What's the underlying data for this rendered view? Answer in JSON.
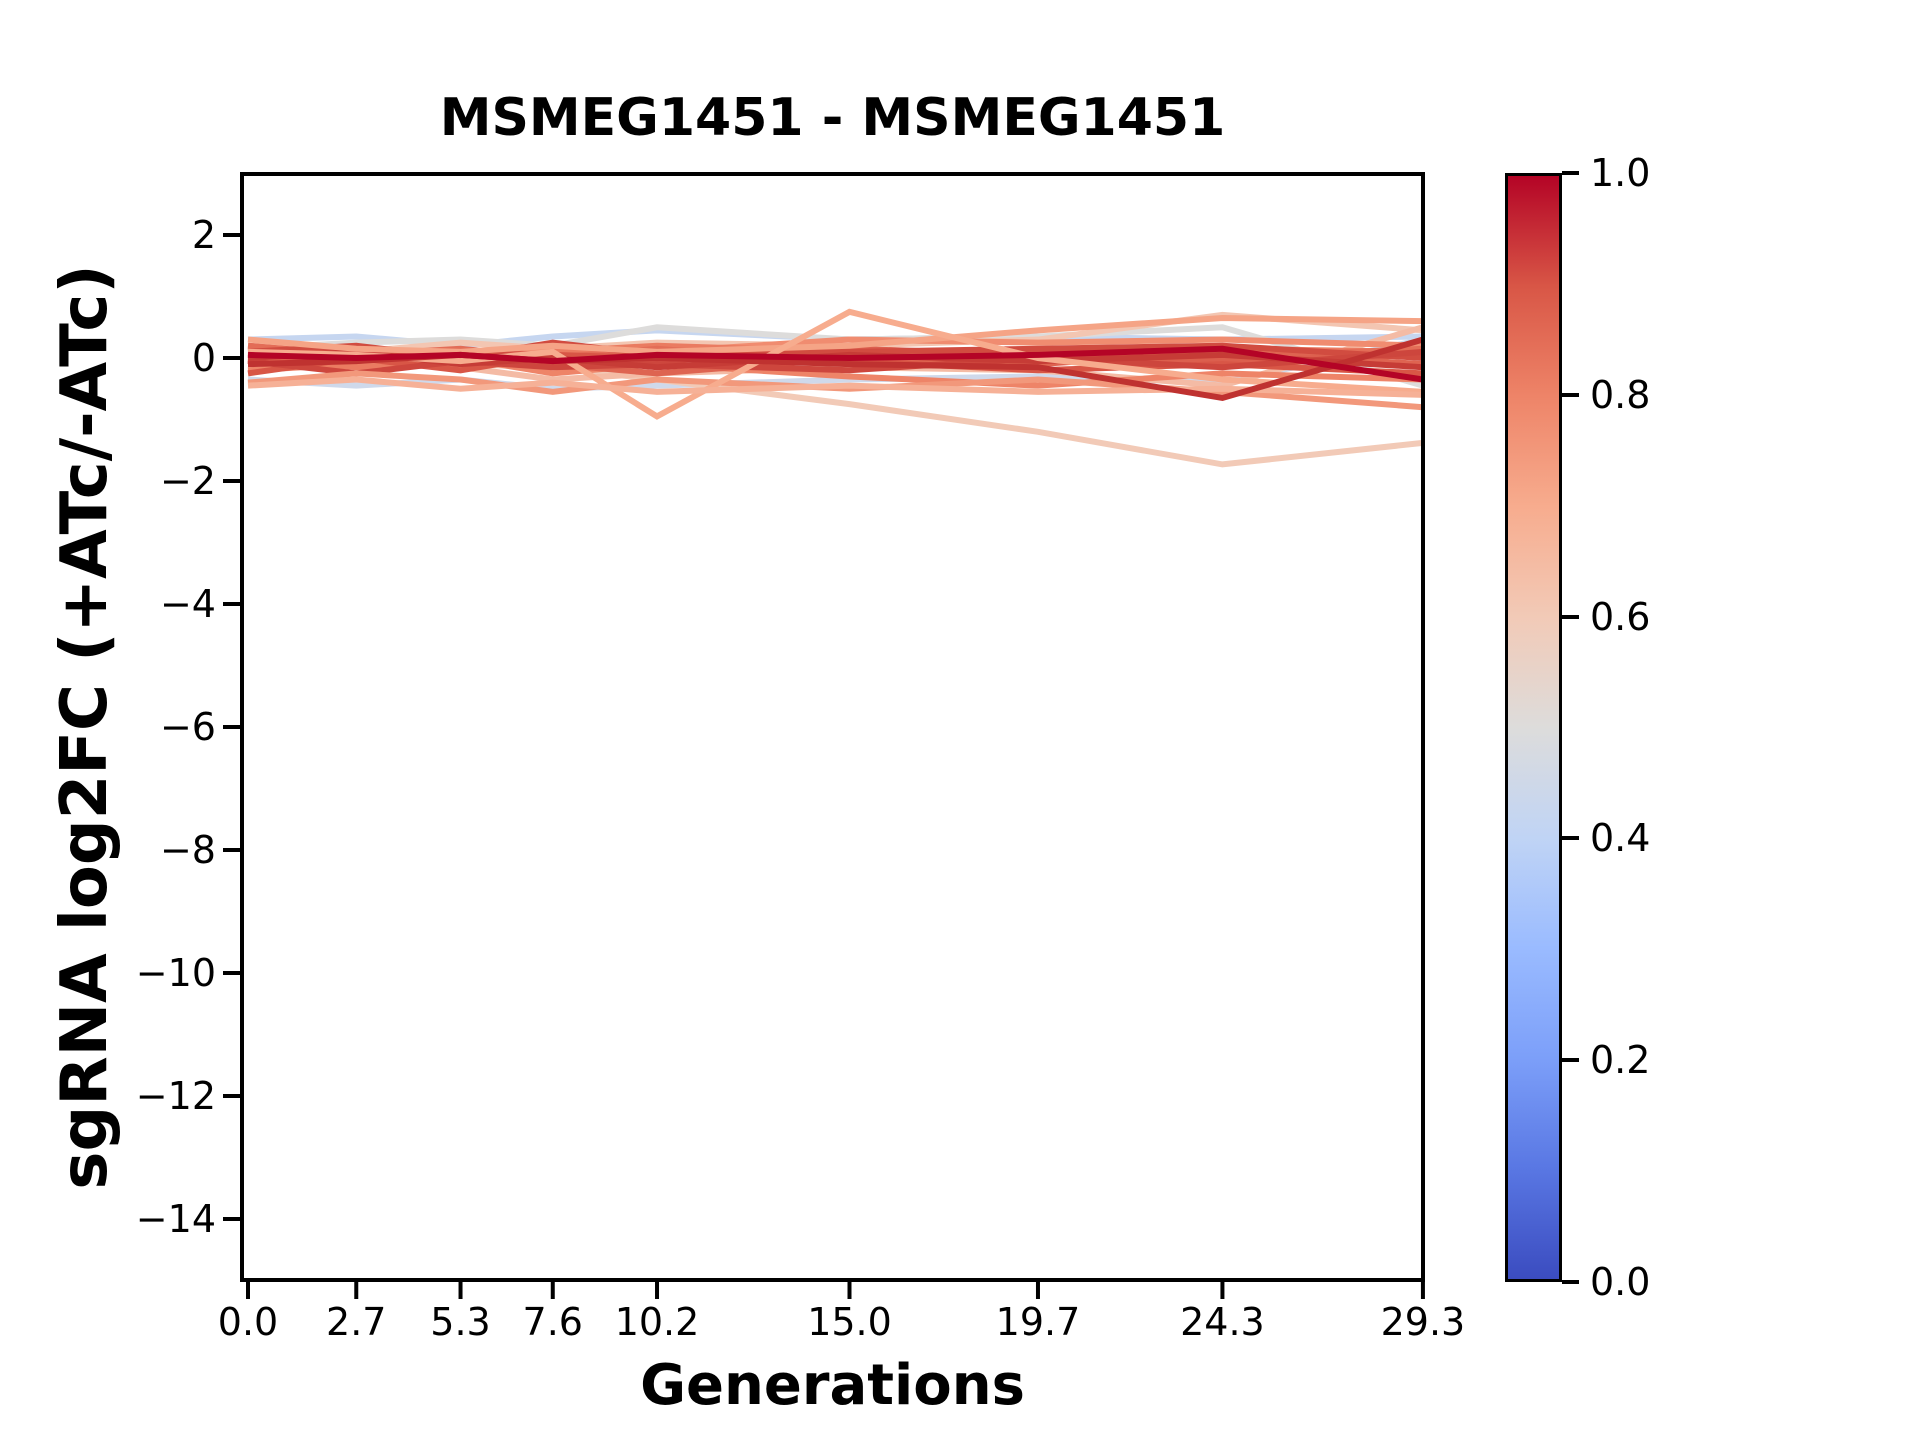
{
  "figure": {
    "background": "#ffffff"
  },
  "chart_data": {
    "type": "line",
    "title": "MSMEG1451 - MSMEG1451",
    "xlabel": "Generations",
    "ylabel": "sgRNA log2FC (+ATc/-ATc)",
    "grid": false,
    "x": [
      0.0,
      2.7,
      5.3,
      7.6,
      10.2,
      15.0,
      19.7,
      24.3,
      29.3
    ],
    "xtick_labels": [
      "0.0",
      "2.7",
      "5.3",
      "7.6",
      "10.2",
      "15.0",
      "19.7",
      "24.3",
      "29.3"
    ],
    "ylim": [
      -15,
      3
    ],
    "ytick_values": [
      2,
      0,
      -2,
      -4,
      -6,
      -8,
      -10,
      -12,
      -14
    ],
    "ytick_labels": [
      "2",
      "0",
      "−2",
      "−4",
      "−6",
      "−8",
      "−10",
      "−12",
      "−14"
    ],
    "series": [
      {
        "cmap_value": 0.42,
        "color": "#c6d6f0",
        "y": [
          0.3,
          0.35,
          0.2,
          0.35,
          0.45,
          0.3,
          0.35,
          0.3,
          0.35
        ]
      },
      {
        "cmap_value": 0.45,
        "color": "#cfd9eb",
        "y": [
          -0.35,
          -0.45,
          -0.35,
          -0.5,
          -0.45,
          -0.35,
          -0.3,
          -0.4,
          0.3
        ]
      },
      {
        "cmap_value": 0.5,
        "color": "#dddcdb",
        "y": [
          0.15,
          0.25,
          0.3,
          0.2,
          0.5,
          0.3,
          0.35,
          0.5,
          -0.45
        ]
      },
      {
        "cmap_value": 0.62,
        "color": "#f3c6b2",
        "y": [
          0.2,
          0.1,
          0.25,
          0.15,
          0.25,
          0.2,
          0.3,
          0.7,
          0.45
        ]
      },
      {
        "cmap_value": 0.6,
        "color": "#f2cab7",
        "y": [
          -0.1,
          -0.05,
          -0.1,
          -0.15,
          -0.35,
          -0.75,
          -1.2,
          -1.73,
          -1.38
        ]
      },
      {
        "cmap_value": 0.65,
        "color": "#f4bba5",
        "y": [
          -0.05,
          0.05,
          -0.15,
          -0.35,
          -0.25,
          -0.15,
          -0.2,
          -0.45,
          0.5
        ]
      },
      {
        "cmap_value": 0.78,
        "color": "#f08c70",
        "y": [
          0.1,
          0.0,
          -0.15,
          0.2,
          0.1,
          0.3,
          0.25,
          0.3,
          0.2
        ]
      },
      {
        "cmap_value": 0.8,
        "color": "#ee8468",
        "y": [
          -0.2,
          -0.1,
          0.0,
          -0.25,
          -0.1,
          -0.3,
          -0.45,
          -0.25,
          -0.35
        ]
      },
      {
        "cmap_value": 0.82,
        "color": "#ea7b61",
        "y": [
          0.0,
          -0.15,
          -0.1,
          0.1,
          0.2,
          0.1,
          0.0,
          0.15,
          0.1
        ]
      },
      {
        "cmap_value": 0.85,
        "color": "#e36d57",
        "y": [
          0.2,
          0.05,
          0.15,
          0.0,
          0.15,
          -0.1,
          0.1,
          0.0,
          0.15
        ]
      },
      {
        "cmap_value": 0.87,
        "color": "#de6451",
        "y": [
          -0.1,
          0.1,
          0.0,
          -0.1,
          -0.25,
          0.0,
          -0.1,
          0.1,
          -0.1
        ]
      },
      {
        "cmap_value": 0.88,
        "color": "#dc5f4e",
        "y": [
          0.05,
          -0.05,
          0.1,
          0.05,
          -0.05,
          0.15,
          0.05,
          -0.05,
          0.05
        ]
      },
      {
        "cmap_value": 0.9,
        "color": "#d85646",
        "y": [
          -0.25,
          0.0,
          -0.2,
          0.05,
          0.0,
          -0.05,
          -0.2,
          -0.1,
          -0.25
        ]
      },
      {
        "cmap_value": 0.92,
        "color": "#d14c40",
        "y": [
          0.1,
          0.2,
          0.0,
          0.25,
          0.05,
          0.1,
          0.15,
          0.2,
          0.0
        ]
      },
      {
        "cmap_value": 0.93,
        "color": "#cd463d",
        "y": [
          -0.05,
          -0.25,
          -0.05,
          -0.15,
          -0.1,
          -0.2,
          0.0,
          -0.15,
          0.1
        ]
      },
      {
        "cmap_value": 0.95,
        "color": "#c63c36",
        "y": [
          0.0,
          0.1,
          -0.1,
          0.0,
          -0.15,
          0.05,
          -0.05,
          0.05,
          -0.15
        ]
      },
      {
        "cmap_value": 0.72,
        "color": "#f5a486",
        "y": [
          0.3,
          0.15,
          0.1,
          0.2,
          0.1,
          0.2,
          0.45,
          0.65,
          0.6
        ]
      },
      {
        "cmap_value": 0.75,
        "color": "#f2987b",
        "y": [
          -0.4,
          -0.25,
          -0.35,
          -0.55,
          -0.35,
          -0.5,
          -0.35,
          -0.55,
          -0.8
        ]
      },
      {
        "cmap_value": 0.7,
        "color": "#f7ac8e",
        "y": [
          0.1,
          0.05,
          -0.05,
          0.1,
          -0.95,
          0.75,
          0.0,
          -0.35,
          -0.55
        ]
      },
      {
        "cmap_value": 0.68,
        "color": "#f6b197",
        "y": [
          -0.45,
          -0.35,
          -0.5,
          -0.4,
          -0.55,
          -0.45,
          -0.55,
          -0.5,
          -0.6
        ]
      },
      {
        "cmap_value": 0.97,
        "color": "#bf3230",
        "y": [
          -0.1,
          -0.05,
          0.05,
          -0.05,
          0.0,
          -0.1,
          -0.15,
          -0.65,
          0.3
        ]
      },
      {
        "cmap_value": 1.0,
        "color": "#b40426",
        "y": [
          0.05,
          0.0,
          0.05,
          -0.05,
          0.05,
          0.0,
          0.05,
          0.15,
          -0.35
        ]
      }
    ],
    "colorbar": {
      "colormap": "coolwarm",
      "range": [
        0.0,
        1.0
      ],
      "tick_values": [
        1.0,
        0.8,
        0.6,
        0.4,
        0.2,
        0.0
      ],
      "tick_labels": [
        "1.0",
        "0.8",
        "0.6",
        "0.4",
        "0.2",
        "0.0"
      ],
      "gradient_stops": [
        "#3b4cc0",
        "#5977e3",
        "#7c9ff9",
        "#9abbff",
        "#c0d4f5",
        "#dddcdb",
        "#f2cab7",
        "#f7ac8e",
        "#ee8468",
        "#d85646",
        "#b40426"
      ]
    }
  }
}
